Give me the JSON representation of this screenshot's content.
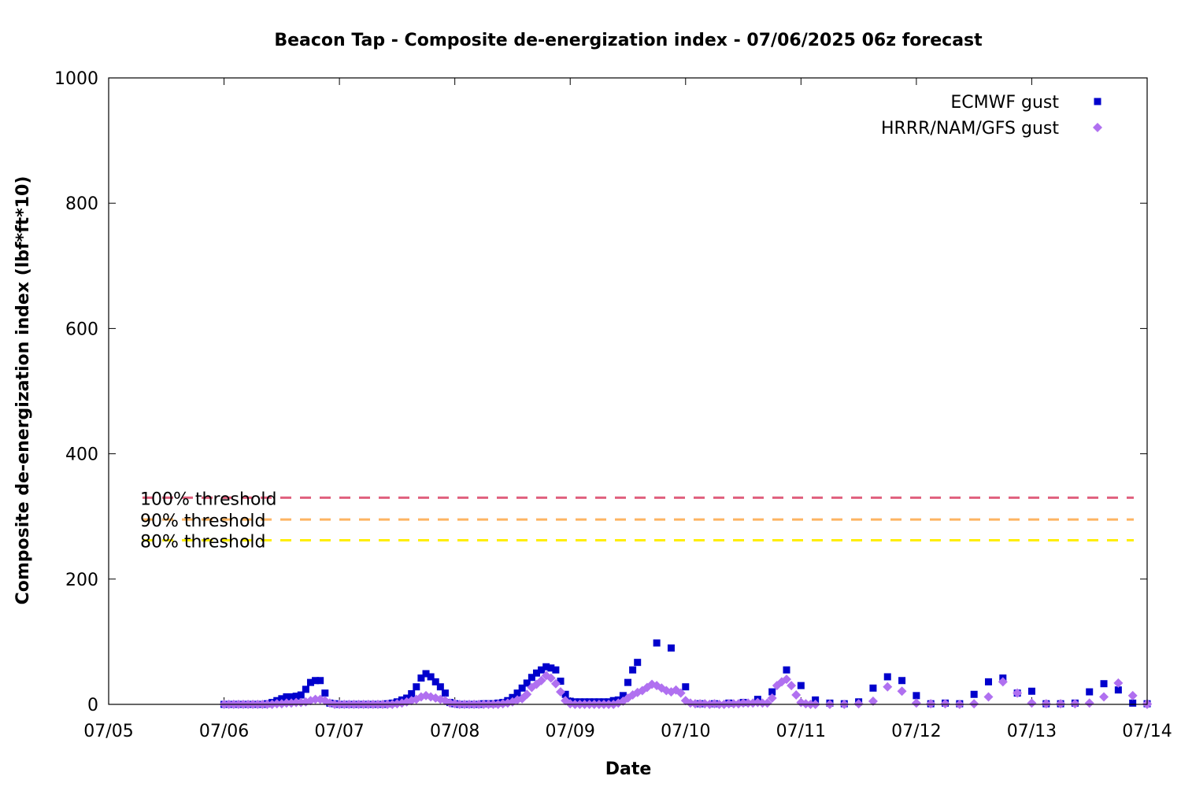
{
  "chart_data": {
    "type": "scatter",
    "title": "Beacon Tap - Composite de-energization index - 07/06/2025 06z forecast",
    "xlabel": "Date",
    "ylabel": "Composite de-energization index (lbf*ft*10)",
    "x_ticks": [
      "07/05",
      "07/06",
      "07/07",
      "07/08",
      "07/09",
      "07/10",
      "07/11",
      "07/12",
      "07/13",
      "07/14"
    ],
    "xlim": [
      "07/05 00:00",
      "07/14 00:00"
    ],
    "ylim": [
      0,
      1000
    ],
    "y_ticks": [
      0,
      200,
      400,
      600,
      800,
      1000
    ],
    "grid": false,
    "legend_position": "top-right",
    "thresholds": [
      {
        "label": "100% threshold",
        "value": 330,
        "color": "#e0607e"
      },
      {
        "label": "90% threshold",
        "value": 295,
        "color": "#fdb462"
      },
      {
        "label": "80% threshold",
        "value": 262,
        "color": "#ffee00"
      }
    ],
    "series": [
      {
        "name": "ECMWF gust",
        "color": "#0000cc",
        "marker": "square",
        "points": [
          [
            "07/06 00:00",
            0
          ],
          [
            "07/06 01:00",
            0
          ],
          [
            "07/06 02:00",
            0
          ],
          [
            "07/06 03:00",
            0
          ],
          [
            "07/06 04:00",
            0
          ],
          [
            "07/06 05:00",
            0
          ],
          [
            "07/06 06:00",
            0
          ],
          [
            "07/06 07:00",
            0
          ],
          [
            "07/06 08:00",
            0
          ],
          [
            "07/06 09:00",
            1
          ],
          [
            "07/06 10:00",
            3
          ],
          [
            "07/06 11:00",
            6
          ],
          [
            "07/06 12:00",
            9
          ],
          [
            "07/06 13:00",
            12
          ],
          [
            "07/06 14:00",
            12
          ],
          [
            "07/06 15:00",
            13
          ],
          [
            "07/06 16:00",
            15
          ],
          [
            "07/06 17:00",
            24
          ],
          [
            "07/06 18:00",
            35
          ],
          [
            "07/06 19:00",
            38
          ],
          [
            "07/06 20:00",
            38
          ],
          [
            "07/06 21:00",
            18
          ],
          [
            "07/06 22:00",
            2
          ],
          [
            "07/06 23:00",
            1
          ],
          [
            "07/07 00:00",
            0
          ],
          [
            "07/07 01:00",
            0
          ],
          [
            "07/07 02:00",
            0
          ],
          [
            "07/07 03:00",
            0
          ],
          [
            "07/07 04:00",
            0
          ],
          [
            "07/07 05:00",
            0
          ],
          [
            "07/07 06:00",
            0
          ],
          [
            "07/07 07:00",
            0
          ],
          [
            "07/07 08:00",
            0
          ],
          [
            "07/07 09:00",
            0
          ],
          [
            "07/07 10:00",
            1
          ],
          [
            "07/07 11:00",
            2
          ],
          [
            "07/07 12:00",
            4
          ],
          [
            "07/07 13:00",
            7
          ],
          [
            "07/07 14:00",
            10
          ],
          [
            "07/07 15:00",
            17
          ],
          [
            "07/07 16:00",
            28
          ],
          [
            "07/07 17:00",
            42
          ],
          [
            "07/07 18:00",
            49
          ],
          [
            "07/07 19:00",
            44
          ],
          [
            "07/07 20:00",
            36
          ],
          [
            "07/07 21:00",
            28
          ],
          [
            "07/07 22:00",
            18
          ],
          [
            "07/07 23:00",
            3
          ],
          [
            "07/08 00:00",
            1
          ],
          [
            "07/08 01:00",
            0
          ],
          [
            "07/08 02:00",
            0
          ],
          [
            "07/08 03:00",
            0
          ],
          [
            "07/08 04:00",
            0
          ],
          [
            "07/08 05:00",
            0
          ],
          [
            "07/08 06:00",
            1
          ],
          [
            "07/08 07:00",
            1
          ],
          [
            "07/08 08:00",
            1
          ],
          [
            "07/08 09:00",
            2
          ],
          [
            "07/08 10:00",
            3
          ],
          [
            "07/08 11:00",
            6
          ],
          [
            "07/08 12:00",
            11
          ],
          [
            "07/08 13:00",
            18
          ],
          [
            "07/08 14:00",
            26
          ],
          [
            "07/08 15:00",
            34
          ],
          [
            "07/08 16:00",
            43
          ],
          [
            "07/08 17:00",
            50
          ],
          [
            "07/08 18:00",
            55
          ],
          [
            "07/08 19:00",
            60
          ],
          [
            "07/08 20:00",
            58
          ],
          [
            "07/08 21:00",
            55
          ],
          [
            "07/08 22:00",
            37
          ],
          [
            "07/08 23:00",
            16
          ],
          [
            "07/09 00:00",
            5
          ],
          [
            "07/09 01:00",
            4
          ],
          [
            "07/09 02:00",
            4
          ],
          [
            "07/09 03:00",
            4
          ],
          [
            "07/09 04:00",
            4
          ],
          [
            "07/09 05:00",
            4
          ],
          [
            "07/09 06:00",
            4
          ],
          [
            "07/09 07:00",
            4
          ],
          [
            "07/09 08:00",
            4
          ],
          [
            "07/09 09:00",
            6
          ],
          [
            "07/09 10:00",
            7
          ],
          [
            "07/09 11:00",
            14
          ],
          [
            "07/09 12:00",
            35
          ],
          [
            "07/09 13:00",
            55
          ],
          [
            "07/09 14:00",
            67
          ],
          [
            "07/09 18:00",
            98
          ],
          [
            "07/09 21:00",
            90
          ],
          [
            "07/10 00:00",
            28
          ],
          [
            "07/10 03:00",
            1
          ],
          [
            "07/10 06:00",
            1
          ],
          [
            "07/10 09:00",
            2
          ],
          [
            "07/10 12:00",
            3
          ],
          [
            "07/10 15:00",
            8
          ],
          [
            "07/10 18:00",
            20
          ],
          [
            "07/10 21:00",
            55
          ],
          [
            "07/11 00:00",
            30
          ],
          [
            "07/11 03:00",
            7
          ],
          [
            "07/11 06:00",
            2
          ],
          [
            "07/11 09:00",
            1
          ],
          [
            "07/11 12:00",
            4
          ],
          [
            "07/11 15:00",
            26
          ],
          [
            "07/11 18:00",
            44
          ],
          [
            "07/11 21:00",
            38
          ],
          [
            "07/12 00:00",
            14
          ],
          [
            "07/12 03:00",
            1
          ],
          [
            "07/12 06:00",
            2
          ],
          [
            "07/12 09:00",
            1
          ],
          [
            "07/12 12:00",
            16
          ],
          [
            "07/12 15:00",
            36
          ],
          [
            "07/12 18:00",
            42
          ],
          [
            "07/12 21:00",
            18
          ],
          [
            "07/13 00:00",
            21
          ],
          [
            "07/13 03:00",
            1
          ],
          [
            "07/13 06:00",
            1
          ],
          [
            "07/13 09:00",
            2
          ],
          [
            "07/13 12:00",
            20
          ],
          [
            "07/13 15:00",
            33
          ],
          [
            "07/13 18:00",
            23
          ],
          [
            "07/13 21:00",
            2
          ],
          [
            "07/14 00:00",
            1
          ]
        ]
      },
      {
        "name": "HRRR/NAM/GFS gust",
        "color": "#b070f0",
        "marker": "diamond",
        "points": [
          [
            "07/06 00:00",
            0
          ],
          [
            "07/06 01:00",
            0
          ],
          [
            "07/06 02:00",
            0
          ],
          [
            "07/06 03:00",
            0
          ],
          [
            "07/06 04:00",
            0
          ],
          [
            "07/06 05:00",
            0
          ],
          [
            "07/06 06:00",
            0
          ],
          [
            "07/06 07:00",
            0
          ],
          [
            "07/06 08:00",
            0
          ],
          [
            "07/06 09:00",
            0
          ],
          [
            "07/06 10:00",
            0
          ],
          [
            "07/06 11:00",
            1
          ],
          [
            "07/06 12:00",
            1
          ],
          [
            "07/06 13:00",
            2
          ],
          [
            "07/06 14:00",
            2
          ],
          [
            "07/06 15:00",
            3
          ],
          [
            "07/06 16:00",
            3
          ],
          [
            "07/06 17:00",
            4
          ],
          [
            "07/06 18:00",
            6
          ],
          [
            "07/06 19:00",
            8
          ],
          [
            "07/06 20:00",
            8
          ],
          [
            "07/06 21:00",
            6
          ],
          [
            "07/06 22:00",
            2
          ],
          [
            "07/06 23:00",
            0
          ],
          [
            "07/07 00:00",
            0
          ],
          [
            "07/07 01:00",
            0
          ],
          [
            "07/07 02:00",
            0
          ],
          [
            "07/07 03:00",
            0
          ],
          [
            "07/07 04:00",
            0
          ],
          [
            "07/07 05:00",
            0
          ],
          [
            "07/07 06:00",
            0
          ],
          [
            "07/07 07:00",
            0
          ],
          [
            "07/07 08:00",
            0
          ],
          [
            "07/07 09:00",
            0
          ],
          [
            "07/07 10:00",
            0
          ],
          [
            "07/07 11:00",
            0
          ],
          [
            "07/07 12:00",
            1
          ],
          [
            "07/07 13:00",
            2
          ],
          [
            "07/07 14:00",
            4
          ],
          [
            "07/07 15:00",
            6
          ],
          [
            "07/07 16:00",
            8
          ],
          [
            "07/07 17:00",
            12
          ],
          [
            "07/07 18:00",
            14
          ],
          [
            "07/07 19:00",
            12
          ],
          [
            "07/07 20:00",
            10
          ],
          [
            "07/07 21:00",
            8
          ],
          [
            "07/07 22:00",
            6
          ],
          [
            "07/07 23:00",
            2
          ],
          [
            "07/08 00:00",
            1
          ],
          [
            "07/08 01:00",
            0
          ],
          [
            "07/08 02:00",
            0
          ],
          [
            "07/08 03:00",
            0
          ],
          [
            "07/08 04:00",
            0
          ],
          [
            "07/08 05:00",
            0
          ],
          [
            "07/08 06:00",
            0
          ],
          [
            "07/08 07:00",
            0
          ],
          [
            "07/08 08:00",
            0
          ],
          [
            "07/08 09:00",
            0
          ],
          [
            "07/08 10:00",
            1
          ],
          [
            "07/08 11:00",
            2
          ],
          [
            "07/08 12:00",
            4
          ],
          [
            "07/08 13:00",
            7
          ],
          [
            "07/08 14:00",
            9
          ],
          [
            "07/08 15:00",
            16
          ],
          [
            "07/08 16:00",
            27
          ],
          [
            "07/08 17:00",
            32
          ],
          [
            "07/08 18:00",
            38
          ],
          [
            "07/08 19:00",
            46
          ],
          [
            "07/08 20:00",
            42
          ],
          [
            "07/08 21:00",
            33
          ],
          [
            "07/08 22:00",
            20
          ],
          [
            "07/08 23:00",
            6
          ],
          [
            "07/09 00:00",
            1
          ],
          [
            "07/09 01:00",
            0
          ],
          [
            "07/09 02:00",
            0
          ],
          [
            "07/09 03:00",
            0
          ],
          [
            "07/09 04:00",
            0
          ],
          [
            "07/09 05:00",
            0
          ],
          [
            "07/09 06:00",
            0
          ],
          [
            "07/09 07:00",
            0
          ],
          [
            "07/09 08:00",
            0
          ],
          [
            "07/09 09:00",
            0
          ],
          [
            "07/09 10:00",
            2
          ],
          [
            "07/09 11:00",
            5
          ],
          [
            "07/09 12:00",
            10
          ],
          [
            "07/09 13:00",
            15
          ],
          [
            "07/09 14:00",
            19
          ],
          [
            "07/09 15:00",
            22
          ],
          [
            "07/09 16:00",
            27
          ],
          [
            "07/09 17:00",
            32
          ],
          [
            "07/09 18:00",
            30
          ],
          [
            "07/09 19:00",
            26
          ],
          [
            "07/09 20:00",
            22
          ],
          [
            "07/09 21:00",
            20
          ],
          [
            "07/09 22:00",
            23
          ],
          [
            "07/09 23:00",
            18
          ],
          [
            "07/10 00:00",
            6
          ],
          [
            "07/10 01:00",
            2
          ],
          [
            "07/10 02:00",
            1
          ],
          [
            "07/10 03:00",
            1
          ],
          [
            "07/10 04:00",
            1
          ],
          [
            "07/10 05:00",
            0
          ],
          [
            "07/10 06:00",
            1
          ],
          [
            "07/10 07:00",
            0
          ],
          [
            "07/10 08:00",
            0
          ],
          [
            "07/10 09:00",
            1
          ],
          [
            "07/10 10:00",
            1
          ],
          [
            "07/10 11:00",
            1
          ],
          [
            "07/10 12:00",
            2
          ],
          [
            "07/10 13:00",
            2
          ],
          [
            "07/10 14:00",
            2
          ],
          [
            "07/10 15:00",
            3
          ],
          [
            "07/10 16:00",
            2
          ],
          [
            "07/10 17:00",
            2
          ],
          [
            "07/10 18:00",
            10
          ],
          [
            "07/10 19:00",
            30
          ],
          [
            "07/10 20:00",
            36
          ],
          [
            "07/10 21:00",
            40
          ],
          [
            "07/10 22:00",
            30
          ],
          [
            "07/10 23:00",
            15
          ],
          [
            "07/11 00:00",
            3
          ],
          [
            "07/11 01:00",
            1
          ],
          [
            "07/11 02:00",
            0
          ],
          [
            "07/11 03:00",
            0
          ],
          [
            "07/11 06:00",
            0
          ],
          [
            "07/11 09:00",
            0
          ],
          [
            "07/11 12:00",
            1
          ],
          [
            "07/11 15:00",
            5
          ],
          [
            "07/11 18:00",
            28
          ],
          [
            "07/11 21:00",
            21
          ],
          [
            "07/12 00:00",
            2
          ],
          [
            "07/12 03:00",
            1
          ],
          [
            "07/12 06:00",
            1
          ],
          [
            "07/12 09:00",
            0
          ],
          [
            "07/12 12:00",
            1
          ],
          [
            "07/12 15:00",
            12
          ],
          [
            "07/12 18:00",
            36
          ],
          [
            "07/12 21:00",
            18
          ],
          [
            "07/13 00:00",
            2
          ],
          [
            "07/13 03:00",
            1
          ],
          [
            "07/13 06:00",
            1
          ],
          [
            "07/13 09:00",
            1
          ],
          [
            "07/13 12:00",
            2
          ],
          [
            "07/13 15:00",
            12
          ],
          [
            "07/13 18:00",
            34
          ],
          [
            "07/13 21:00",
            14
          ],
          [
            "07/14 00:00",
            1
          ],
          [
            "07/14 00:00",
            0
          ]
        ]
      }
    ]
  }
}
